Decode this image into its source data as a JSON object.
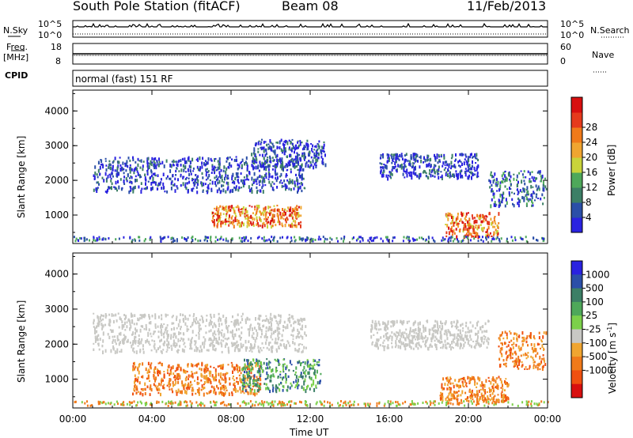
{
  "header": {
    "title": "South Pole Station (fitACF)",
    "beam": "Beam 08",
    "date": "11/Feb/2013"
  },
  "top_panels": {
    "nsky_label": "N.Sky",
    "nsearch_label": "N.Search",
    "nsky_tick_top": "10^5",
    "nsky_tick_bottom": "10^0",
    "right_tick_top": "10^5",
    "right_tick_bottom": "10^0",
    "freq_label": "Freq.",
    "freq_unit": "[MHz]",
    "freq_tick_top": "18",
    "freq_tick_bottom": "8",
    "nave_label": "Nave",
    "nave_tick_top": "60",
    "nave_tick_bottom": "0",
    "cpid_label": "CPID",
    "cpid_value": "normal (fast) 151 RF"
  },
  "chart_data": [
    {
      "type": "heatmap",
      "panel": "power",
      "ylabel": "Slant Range [km]",
      "ylim": [
        180,
        4600
      ],
      "y_ticks": [
        "1000",
        "2000",
        "3000",
        "4000"
      ],
      "colorbar": {
        "label": "Power [dB]",
        "ticks": [
          "4",
          "8",
          "12",
          "16",
          "20",
          "24",
          "28"
        ],
        "colors": [
          "#2a22e0",
          "#2b4fa8",
          "#3c7f66",
          "#4ea85a",
          "#c9d33a",
          "#f0a530",
          "#f07a1a",
          "#e53a1c",
          "#d80f0f"
        ]
      },
      "scatter_regions": [
        {
          "t_start": 1.0,
          "t_end": 11.8,
          "range_low": 1700,
          "range_high": 2700,
          "level": "low"
        },
        {
          "t_start": 7.0,
          "t_end": 11.5,
          "range_low": 700,
          "range_high": 1300,
          "level": "high"
        },
        {
          "t_start": 9.0,
          "t_end": 12.8,
          "range_low": 2400,
          "range_high": 3200,
          "level": "low"
        },
        {
          "t_start": 15.5,
          "t_end": 20.5,
          "range_low": 2100,
          "range_high": 2800,
          "level": "low"
        },
        {
          "t_start": 18.8,
          "t_end": 21.5,
          "range_low": 400,
          "range_high": 1100,
          "level": "high"
        },
        {
          "t_start": 21.0,
          "t_end": 24.0,
          "range_low": 1300,
          "range_high": 2300,
          "level": "mid"
        }
      ]
    },
    {
      "type": "heatmap",
      "panel": "velocity",
      "ylabel": "Slant Range [km]",
      "xlabel": "Time UT",
      "ylim": [
        180,
        4600
      ],
      "xlim": [
        0,
        24
      ],
      "y_ticks": [
        "1000",
        "2000",
        "3000",
        "4000"
      ],
      "x_ticks": [
        "00:00",
        "04:00",
        "08:00",
        "12:00",
        "16:00",
        "20:00",
        "00:00"
      ],
      "colorbar": {
        "label": "Velocity [m s",
        "label_superscript": "-1",
        "label_end": "]",
        "ticks": [
          "1000",
          "500",
          "100",
          "25",
          "-25",
          "-100",
          "-500",
          "-1000"
        ],
        "colors": [
          "#2a22e0",
          "#2b4fa8",
          "#3c7f66",
          "#4ea85a",
          "#7cd04a",
          "#c8c8c4",
          "#f0a530",
          "#f07a1a",
          "#f05010",
          "#d80f0f"
        ]
      },
      "scatter_regions": [
        {
          "t_start": 1.0,
          "t_end": 11.8,
          "range_low": 1800,
          "range_high": 2900,
          "level": "ground"
        },
        {
          "t_start": 3.0,
          "t_end": 9.5,
          "range_low": 600,
          "range_high": 1500,
          "level": "away"
        },
        {
          "t_start": 8.5,
          "t_end": 12.5,
          "range_low": 700,
          "range_high": 1600,
          "level": "toward"
        },
        {
          "t_start": 15.0,
          "t_end": 21.0,
          "range_low": 1900,
          "range_high": 2700,
          "level": "ground"
        },
        {
          "t_start": 18.5,
          "t_end": 22.0,
          "range_low": 400,
          "range_high": 1100,
          "level": "away"
        },
        {
          "t_start": 21.5,
          "t_end": 24.0,
          "range_low": 1300,
          "range_high": 2400,
          "level": "away"
        }
      ]
    }
  ]
}
